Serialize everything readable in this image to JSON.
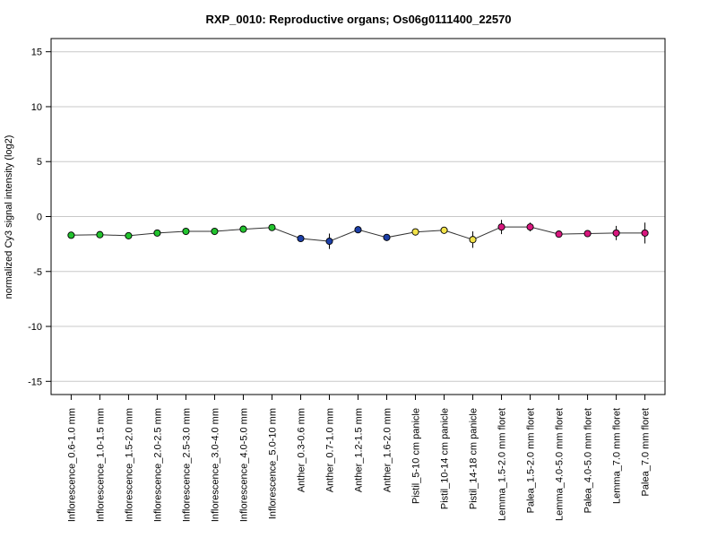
{
  "chart_data": {
    "type": "line",
    "title": "RXP_0010: Reproductive organs; Os06g0111400_22570",
    "xlabel": "",
    "ylabel": "normalized Cy3 signal intensity (log2)",
    "ylim": [
      -16.2,
      16.2
    ],
    "yticks": [
      -15,
      -10,
      -5,
      0,
      5,
      10,
      15
    ],
    "ytick_labels": [
      "-15",
      "-10",
      "-5",
      "0",
      "5",
      "10",
      "15"
    ],
    "grid": true,
    "categories": [
      "Inflorescence_0.6-1.0 mm",
      "Inflorescence_1.0-1.5 mm",
      "Inflorescence_1.5-2.0 mm",
      "Inflorescence_2.0-2.5 mm",
      "Inflorescence_2.5-3.0 mm",
      "Inflorescence_3.0-4.0 mm",
      "Inflorescence_4.0-5.0 mm",
      "Inflorescence_5.0-10 mm",
      "Anther_0.3-0.6 mm",
      "Anther_0.7-1.0 mm",
      "Anther_1.2-1.5 mm",
      "Anther_1.6-2.0 mm",
      "Pistil_5-10 cm panicle",
      "Pistil_10-14 cm panicle",
      "Pistil_14-18 cm panicle",
      "Lemma_1.5-2.0 mm floret",
      "Palea_1.5-2.0 mm floret",
      "Lemma_4.0-5.0 mm floret",
      "Palea_4.0-5.0 mm floret",
      "Lemma_7.0 mm floret",
      "Palea_7.0 mm floret"
    ],
    "values": [
      -1.7,
      -1.65,
      -1.75,
      -1.5,
      -1.35,
      -1.35,
      -1.15,
      -1.0,
      -2.0,
      -2.25,
      -1.2,
      -1.9,
      -1.4,
      -1.25,
      -2.1,
      -0.95,
      -0.95,
      -1.6,
      -1.55,
      -1.5,
      -1.5
    ],
    "error_low": [
      -1.75,
      -1.7,
      -1.8,
      -1.55,
      -1.4,
      -1.4,
      -1.2,
      -1.05,
      -2.1,
      -2.95,
      -1.3,
      -1.95,
      -1.5,
      -1.35,
      -1.35,
      -0.3,
      -0.55,
      -1.65,
      -1.6,
      -0.85,
      -0.55
    ],
    "error_high": [
      -1.65,
      -1.6,
      -1.7,
      -1.45,
      -1.3,
      -1.3,
      -1.1,
      -0.95,
      -1.9,
      -1.55,
      -1.1,
      -1.85,
      -1.3,
      -1.15,
      -2.85,
      -1.6,
      -1.35,
      -1.55,
      -1.5,
      -2.15,
      -2.45
    ],
    "point_colors": [
      "#22c32e",
      "#22c32e",
      "#22c32e",
      "#22c32e",
      "#22c32e",
      "#22c32e",
      "#22c32e",
      "#22c32e",
      "#1c3fa8",
      "#1c3fa8",
      "#1c3fa8",
      "#1c3fa8",
      "#f2e34a",
      "#f2e34a",
      "#f2e34a",
      "#d8177e",
      "#d8177e",
      "#d8177e",
      "#d8177e",
      "#d8177e",
      "#d8177e"
    ],
    "line_color": "#333333",
    "grid_color": "#c8c8c8"
  }
}
